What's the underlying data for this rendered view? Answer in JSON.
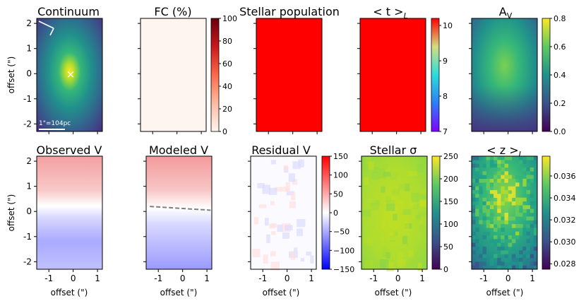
{
  "chart_data": [
    {
      "type": "heatmap",
      "id": "p1",
      "title": "Continuum",
      "colormap": "viridis",
      "xlim": [
        -1.5,
        1.2
      ],
      "ylim": [
        -2.3,
        2.2
      ],
      "yticks": [
        "-2",
        "-1",
        "0",
        "1",
        "2"
      ],
      "ylabel": "offset (\")",
      "scale_bar_label": "1\"=104pc",
      "marker": "×",
      "show_xtick_labels": false
    },
    {
      "type": "heatmap",
      "id": "p2",
      "title": "FC (%)",
      "fill": "#fff5f0",
      "colorbar": {
        "ticks": [
          "0",
          "20",
          "40",
          "60",
          "80",
          "100"
        ],
        "min": 0,
        "max": 100,
        "colormap": "reds"
      },
      "show_xtick_labels": false
    },
    {
      "type": "heatmap",
      "id": "p3",
      "title": "Stellar population",
      "fill": "#ff0000",
      "show_xtick_labels": false
    },
    {
      "type": "heatmap",
      "id": "p4",
      "title": "< t >",
      "title_sub": "L",
      "fill": "#ff0000",
      "colorbar": {
        "ticks": [
          "7",
          "8",
          "9",
          "10"
        ],
        "min": 7,
        "max": 10.2,
        "colormap": "rainbow"
      },
      "show_xtick_labels": false
    },
    {
      "type": "heatmap",
      "id": "p5",
      "title": "A",
      "title_sub": "V",
      "colormap": "viridis",
      "colorbar": {
        "ticks": [
          "0.0",
          "0.2",
          "0.4",
          "0.6",
          "0.8"
        ],
        "min": 0.0,
        "max": 0.8,
        "colormap": "viridis"
      },
      "show_xtick_labels": false
    },
    {
      "type": "heatmap",
      "id": "p6",
      "title": "Observed V",
      "colormap": "bwr",
      "xlim": [
        -1.5,
        1.2
      ],
      "ylim": [
        -2.3,
        2.2
      ],
      "xticks": [
        "-1",
        "0",
        "1"
      ],
      "yticks": [
        "-2",
        "-1",
        "0",
        "1",
        "2"
      ],
      "xlabel": "offset (\")",
      "ylabel": "offset (\")"
    },
    {
      "type": "heatmap",
      "id": "p7",
      "title": "Modeled V",
      "colormap": "bwr",
      "xticks": [
        "-1",
        "0",
        "1"
      ],
      "xlabel": "offset (\")",
      "line_x": [
        -1.35,
        1.15
      ],
      "line_y": [
        0.2,
        0.05
      ]
    },
    {
      "type": "heatmap",
      "id": "p8",
      "title": "Residual V",
      "colormap": "bwr",
      "xticks": [
        "-1",
        "0",
        "1"
      ],
      "xlabel": "offset (\")",
      "colorbar": {
        "ticks": [
          "150",
          "100",
          "50",
          "0",
          "−50",
          "−100",
          "−150"
        ],
        "min": -150,
        "max": 150,
        "colormap": "bwr"
      }
    },
    {
      "type": "heatmap",
      "id": "p9",
      "title": "Stellar σ",
      "colormap": "viridis",
      "xticks": [
        "-1",
        "0",
        "1"
      ],
      "xlabel": "offset (\")",
      "colorbar": {
        "ticks": [
          "0",
          "50",
          "100",
          "150",
          "200",
          "250"
        ],
        "min": 0,
        "max": 250,
        "colormap": "viridis"
      }
    },
    {
      "type": "heatmap",
      "id": "p10",
      "title": "< z >",
      "title_sub": "L",
      "colormap": "viridis",
      "xticks": [
        "-1",
        "0",
        "1"
      ],
      "xlabel": "offset (\")",
      "colorbar": {
        "ticks": [
          "0.028",
          "0.030",
          "0.032",
          "0.034",
          "0.036"
        ],
        "min": 0.0275,
        "max": 0.0378,
        "colormap": "viridis"
      }
    }
  ]
}
